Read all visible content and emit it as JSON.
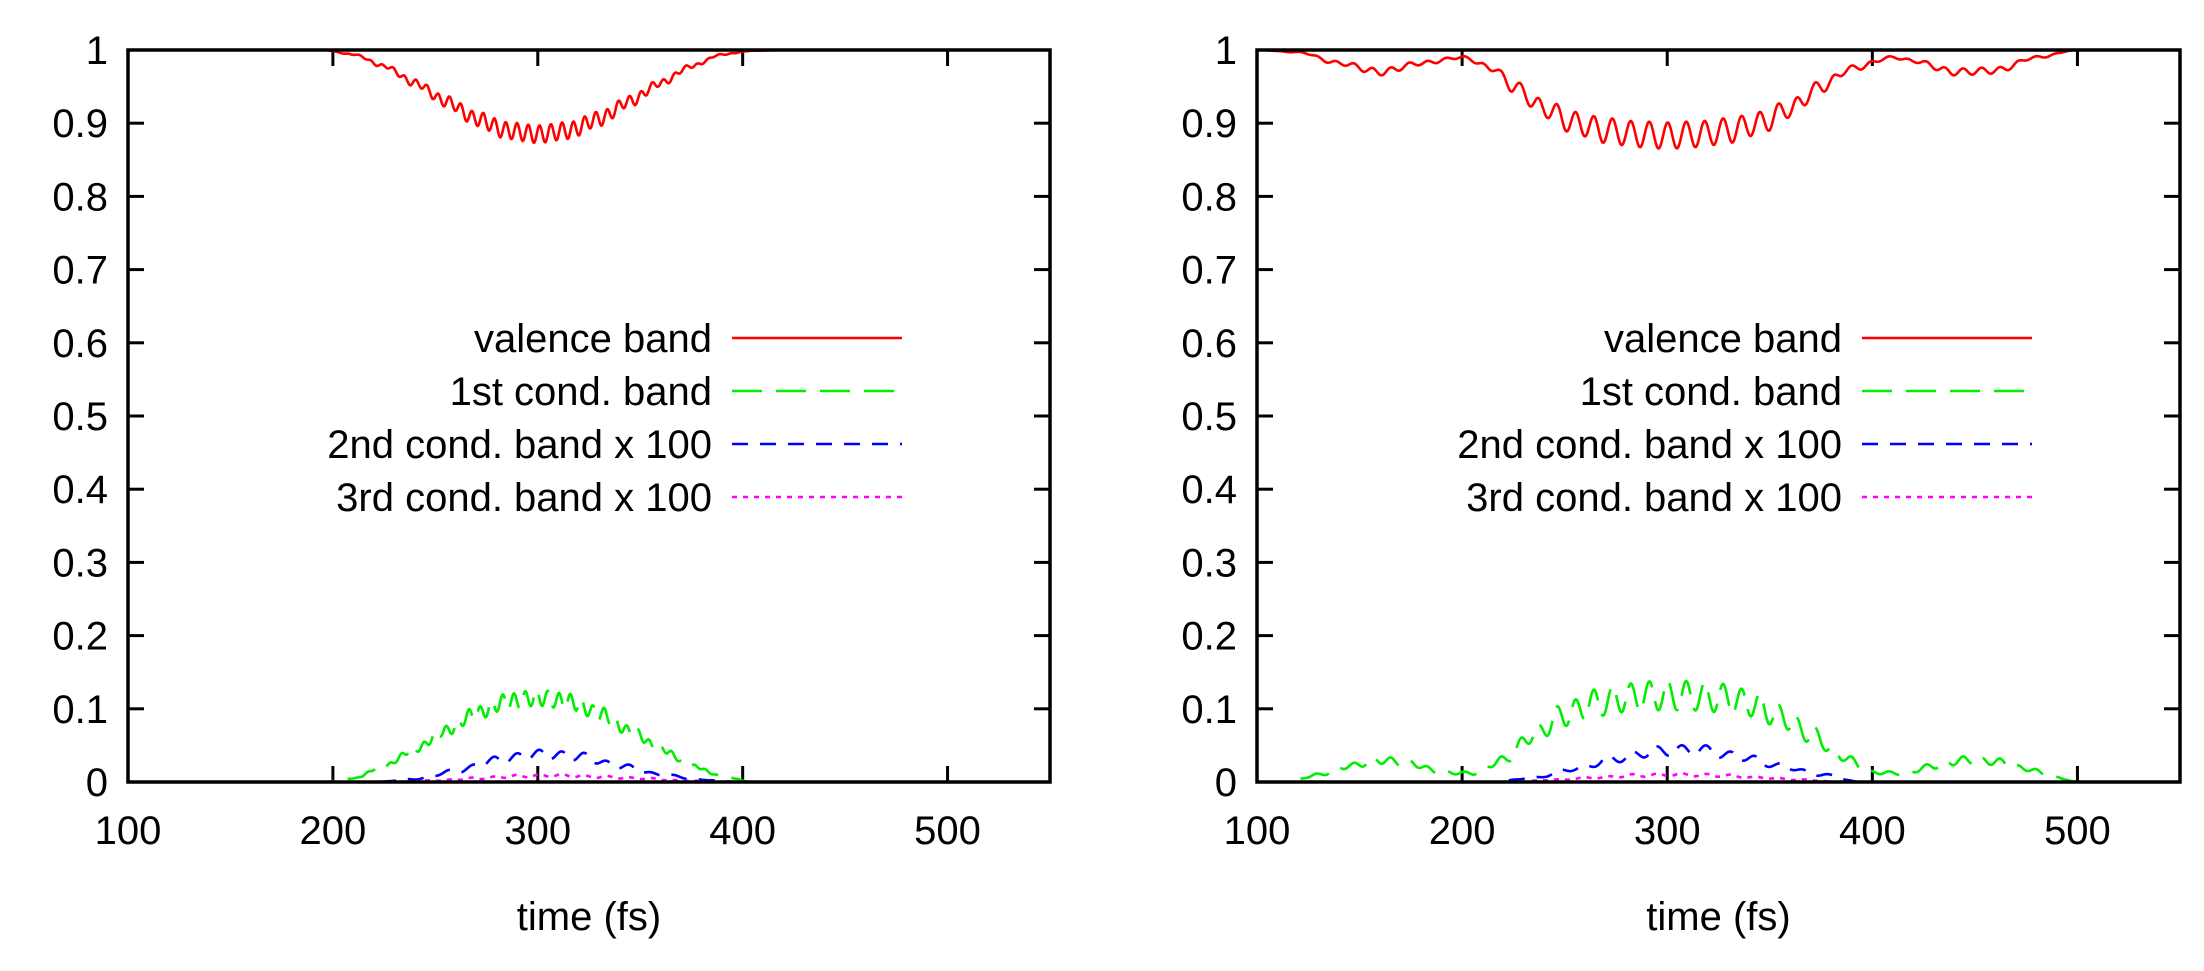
{
  "chart_data": [
    {
      "type": "line",
      "title": "",
      "xlabel": "time (fs)",
      "ylabel": "",
      "xlim": [
        100,
        550
      ],
      "ylim": [
        0,
        1
      ],
      "xticks": [
        100,
        200,
        300,
        400,
        500
      ],
      "yticks": [
        0,
        0.1,
        0.2,
        0.3,
        0.4,
        0.5,
        0.6,
        0.7,
        0.8,
        0.9,
        1
      ],
      "ytick_labels": [
        "0",
        "0.1",
        "0.2",
        "0.3",
        "0.4",
        "0.5",
        "0.6",
        "0.7",
        "0.8",
        "0.9",
        "1"
      ],
      "legend_position": "center-right",
      "series": [
        {
          "name": "valence band",
          "color": "#ff0000",
          "dash": "solid",
          "x": [
            195,
            210,
            225,
            240,
            255,
            270,
            285,
            300,
            315,
            330,
            345,
            360,
            375,
            390,
            405,
            420
          ],
          "y": [
            1.0,
            0.994,
            0.978,
            0.955,
            0.93,
            0.906,
            0.89,
            0.885,
            0.89,
            0.906,
            0.93,
            0.955,
            0.978,
            0.994,
            0.999,
            1.0
          ],
          "oscillation_amplitude": 0.012,
          "oscillation_period_fs": 5.5
        },
        {
          "name": "1st cond. band",
          "color": "#00ee00",
          "dash": "long-dash",
          "x": [
            100,
            195,
            210,
            225,
            240,
            255,
            270,
            285,
            300,
            315,
            330,
            345,
            360,
            375,
            390,
            405,
            420,
            550
          ],
          "y": [
            0,
            0,
            0.005,
            0.022,
            0.045,
            0.07,
            0.094,
            0.11,
            0.115,
            0.11,
            0.094,
            0.07,
            0.045,
            0.022,
            0.008,
            0.0,
            0,
            0
          ],
          "oscillation_amplitude": 0.011,
          "oscillation_period_fs": 5.5
        },
        {
          "name": "2nd cond. band x 100",
          "color": "#0000ff",
          "dash": "dash",
          "x": [
            100,
            220,
            240,
            260,
            280,
            300,
            320,
            340,
            360,
            380,
            400,
            550
          ],
          "y": [
            0,
            0,
            0.004,
            0.015,
            0.03,
            0.038,
            0.035,
            0.022,
            0.01,
            0.003,
            0,
            0
          ],
          "oscillation_amplitude": 0.006,
          "oscillation_period_fs": 11
        },
        {
          "name": "3rd cond. band x 100",
          "color": "#ff00ff",
          "dash": "dot",
          "x": [
            100,
            230,
            250,
            270,
            290,
            310,
            330,
            350,
            370,
            390,
            550
          ],
          "y": [
            0,
            0,
            0.002,
            0.005,
            0.008,
            0.009,
            0.007,
            0.005,
            0.002,
            0,
            0
          ],
          "oscillation_amplitude": 0.002,
          "oscillation_period_fs": 11
        }
      ]
    },
    {
      "type": "line",
      "title": "",
      "xlabel": "time (fs)",
      "ylabel": "",
      "xlim": [
        100,
        550
      ],
      "ylim": [
        0,
        1
      ],
      "xticks": [
        100,
        200,
        300,
        400,
        500
      ],
      "yticks": [
        0,
        0.1,
        0.2,
        0.3,
        0.4,
        0.5,
        0.6,
        0.7,
        0.8,
        0.9,
        1
      ],
      "ytick_labels": [
        "0",
        "0.1",
        "0.2",
        "0.3",
        "0.4",
        "0.5",
        "0.6",
        "0.7",
        "0.8",
        "0.9",
        "1"
      ],
      "legend_position": "center-right",
      "series": [
        {
          "name": "valence band",
          "color": "#ff0000",
          "dash": "solid",
          "x": [
            100,
            120,
            140,
            160,
            180,
            200,
            215,
            225,
            240,
            255,
            270,
            285,
            300,
            315,
            330,
            345,
            360,
            375,
            390,
            410,
            420,
            440,
            460,
            480,
            500
          ],
          "y": [
            1.0,
            0.997,
            0.982,
            0.97,
            0.982,
            0.99,
            0.975,
            0.95,
            0.92,
            0.9,
            0.89,
            0.885,
            0.883,
            0.885,
            0.89,
            0.9,
            0.92,
            0.95,
            0.975,
            0.99,
            0.985,
            0.97,
            0.972,
            0.99,
            1.0
          ],
          "oscillation_amplitude": 0.018,
          "oscillation_period_fs": 9
        },
        {
          "name": "1st cond. band",
          "color": "#00ee00",
          "dash": "long-dash",
          "x": [
            100,
            115,
            130,
            145,
            160,
            175,
            190,
            205,
            220,
            235,
            250,
            265,
            280,
            295,
            310,
            325,
            340,
            355,
            370,
            385,
            400,
            415,
            430,
            445,
            460,
            475,
            490,
            500
          ],
          "y": [
            0,
            0,
            0.01,
            0.022,
            0.03,
            0.025,
            0.013,
            0.012,
            0.03,
            0.065,
            0.092,
            0.108,
            0.115,
            0.118,
            0.118,
            0.115,
            0.108,
            0.09,
            0.065,
            0.035,
            0.013,
            0.012,
            0.022,
            0.03,
            0.028,
            0.018,
            0.006,
            0
          ],
          "oscillation_amplitude": 0.02,
          "oscillation_period_fs": 9
        },
        {
          "name": "2nd cond. band x 100",
          "color": "#0000ff",
          "dash": "dash",
          "x": [
            100,
            215,
            235,
            255,
            275,
            295,
            315,
            335,
            355,
            375,
            395,
            550
          ],
          "y": [
            0,
            0,
            0.006,
            0.018,
            0.032,
            0.042,
            0.044,
            0.035,
            0.022,
            0.01,
            0,
            0
          ],
          "oscillation_amplitude": 0.007,
          "oscillation_period_fs": 12
        },
        {
          "name": "3rd cond. band x 100",
          "color": "#ff00ff",
          "dash": "dot",
          "x": [
            100,
            225,
            245,
            265,
            285,
            305,
            325,
            345,
            365,
            385,
            550
          ],
          "y": [
            0,
            0,
            0.003,
            0.006,
            0.009,
            0.01,
            0.009,
            0.006,
            0.003,
            0,
            0
          ],
          "oscillation_amplitude": 0.002,
          "oscillation_period_fs": 12
        }
      ]
    }
  ]
}
